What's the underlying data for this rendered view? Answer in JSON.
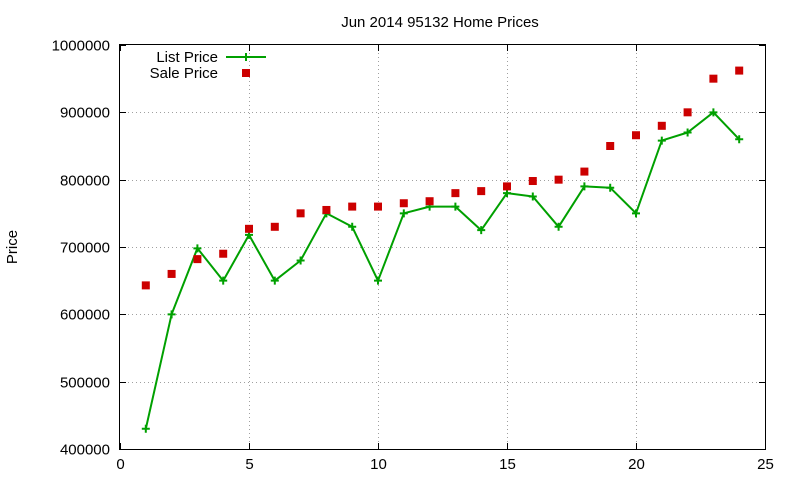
{
  "chart_data": {
    "type": "line",
    "title": "Jun 2014 95132 Home Prices",
    "xlabel": "",
    "ylabel": "Price",
    "xlim": [
      0,
      25
    ],
    "ylim": [
      400000,
      1000000
    ],
    "xticks": [
      0,
      5,
      10,
      15,
      20,
      25
    ],
    "yticks": [
      400000,
      500000,
      600000,
      700000,
      800000,
      900000,
      1000000
    ],
    "grid": true,
    "legend_position": "top-left",
    "series": [
      {
        "name": "List Price",
        "style": "line-plus",
        "color": "#00a000",
        "x": [
          1,
          2,
          3,
          4,
          5,
          6,
          7,
          8,
          9,
          10,
          11,
          12,
          13,
          14,
          15,
          16,
          17,
          18,
          19,
          20,
          21,
          22,
          23,
          24
        ],
        "y": [
          430000,
          600000,
          698000,
          650000,
          718000,
          650000,
          680000,
          750000,
          730000,
          650000,
          750000,
          760000,
          760000,
          725000,
          780000,
          775000,
          730000,
          790000,
          788000,
          750000,
          858000,
          870000,
          900000,
          860000
        ]
      },
      {
        "name": "Sale Price",
        "style": "square",
        "color": "#cc0000",
        "x": [
          1,
          2,
          3,
          4,
          5,
          6,
          7,
          8,
          9,
          10,
          11,
          12,
          13,
          14,
          15,
          16,
          17,
          18,
          19,
          20,
          21,
          22,
          23,
          24
        ],
        "y": [
          643000,
          660000,
          682000,
          690000,
          727000,
          730000,
          750000,
          755000,
          760000,
          760000,
          765000,
          768000,
          780000,
          783000,
          790000,
          798000,
          800000,
          812000,
          850000,
          866000,
          880000,
          900000,
          950000,
          962000
        ]
      }
    ]
  }
}
